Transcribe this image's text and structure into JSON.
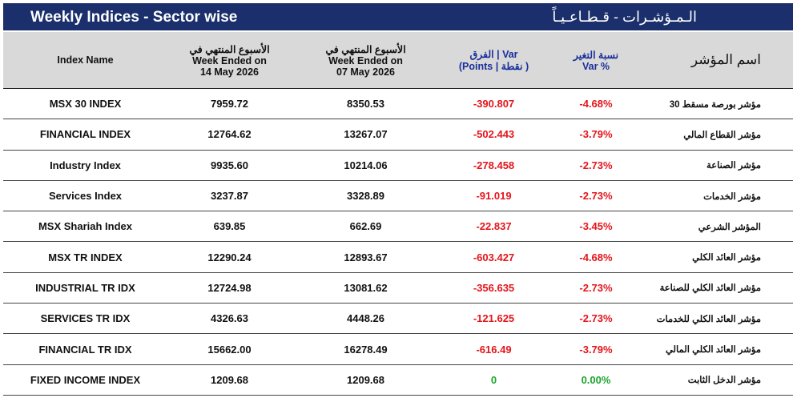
{
  "title": {
    "english": "Weekly Indices - Sector wise",
    "arabic": "الـمـؤشـرات - قـطـاعـيـاً"
  },
  "table": {
    "columns": [
      [
        "Index Name"
      ],
      [
        "الأسبوع المنتهي في",
        "Week Ended on",
        "14 May 2026"
      ],
      [
        "الأسبوع المنتهي في",
        "Week Ended on",
        "07 May 2026"
      ],
      [
        "الفرق | Var",
        "(Points | نقطة )"
      ],
      [
        "نسبة التغير",
        "Var %"
      ],
      [
        "اسم المؤشر"
      ]
    ],
    "rows": [
      [
        "MSX 30 INDEX",
        "7959.72",
        "8350.53",
        "-390.807",
        "-4.68%",
        "مؤشر بورصة مسقط 30"
      ],
      [
        "FINANCIAL INDEX",
        "12764.62",
        "13267.07",
        "-502.443",
        "-3.79%",
        "مؤشر القطاع المالي"
      ],
      [
        "Industry Index",
        "9935.60",
        "10214.06",
        "-278.458",
        "-2.73%",
        "مؤشر الصناعة"
      ],
      [
        "Services Index",
        "3237.87",
        "3328.89",
        "-91.019",
        "-2.73%",
        "مؤشر الخدمات"
      ],
      [
        "MSX Shariah Index",
        "639.85",
        "662.69",
        "-22.837",
        "-3.45%",
        "المؤشر الشرعي"
      ],
      [
        "MSX TR INDEX",
        "12290.24",
        "12893.67",
        "-603.427",
        "-4.68%",
        "مؤشر العائد الكلي"
      ],
      [
        "INDUSTRIAL TR IDX",
        "12724.98",
        "13081.62",
        "-356.635",
        "-2.73%",
        "مؤشر العائد الكلي للصناعة"
      ],
      [
        "SERVICES TR IDX",
        "4326.63",
        "4448.26",
        "-121.625",
        "-2.73%",
        "مؤشر العائد الكلي للخدمات"
      ],
      [
        "FINANCIAL TR IDX",
        "15662.00",
        "16278.49",
        "-616.49",
        "-3.79%",
        "مؤشر العائد الكلي المالي"
      ],
      [
        "FIXED INCOME INDEX",
        "1209.68",
        "1209.68",
        "0",
        "0.00%",
        "مؤشر الدخل الثابت"
      ]
    ]
  }
}
